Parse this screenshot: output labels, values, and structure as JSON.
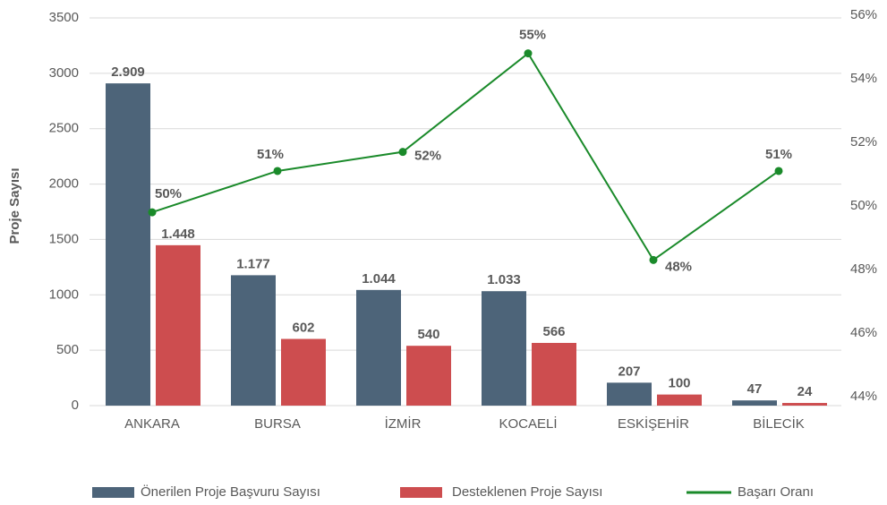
{
  "chart_data": {
    "type": "bar",
    "y_label": "Proje Sayısı",
    "categories": [
      "ANKARA",
      "BURSA",
      "İZMİR",
      "KOCAELİ",
      "ESKİŞEHİR",
      "BİLECİK"
    ],
    "series": [
      {
        "name": "Önerilen Proje Başvuru Sayısı",
        "color": "#4d6479",
        "values": [
          2909,
          1177,
          1044,
          1033,
          207,
          47
        ],
        "value_labels": [
          "2.909",
          "1.177",
          "1.044",
          "1.033",
          "207",
          "47"
        ]
      },
      {
        "name": "Desteklenen Proje Sayısı",
        "color": "#cd4d4f",
        "values": [
          1448,
          602,
          540,
          566,
          100,
          24
        ],
        "value_labels": [
          "1.448",
          "602",
          "540",
          "566",
          "100",
          "24"
        ]
      },
      {
        "name": "Başarı Oranı",
        "type": "line",
        "axis": "y2",
        "color": "#1a8a2a",
        "values": [
          49.8,
          51.1,
          51.7,
          54.8,
          48.3,
          51.1
        ],
        "value_labels": [
          "50%",
          "51%",
          "52%",
          "55%",
          "48%",
          "51%"
        ]
      }
    ],
    "ylim": [
      0,
      3500
    ],
    "yticks": [
      0,
      500,
      1000,
      1500,
      2000,
      2500,
      3000,
      3500
    ],
    "y2lim": [
      44,
      56
    ],
    "y2ticks": [
      {
        "value": 44,
        "label": "44%"
      },
      {
        "value": 46,
        "label": "46%"
      },
      {
        "value": 48,
        "label": "48%"
      },
      {
        "value": 50,
        "label": "50%"
      },
      {
        "value": 52,
        "label": "52%"
      },
      {
        "value": 54,
        "label": "54%"
      },
      {
        "value": 56,
        "label": "56%"
      }
    ],
    "grid": true,
    "legend": "bottom"
  }
}
